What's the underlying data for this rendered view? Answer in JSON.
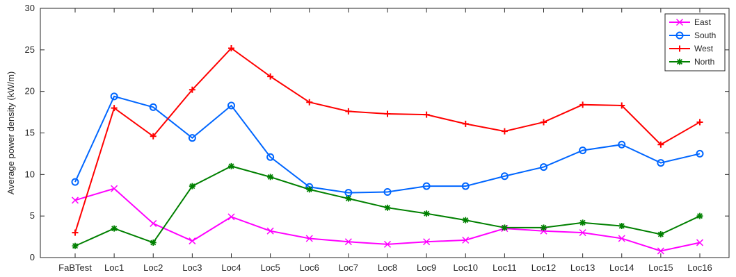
{
  "chart_data": {
    "type": "line",
    "title": "",
    "xlabel": "",
    "ylabel": "Average power density (kW/m)",
    "ylim": [
      0,
      30
    ],
    "yticks": [
      0,
      5,
      10,
      15,
      20,
      25,
      30
    ],
    "grid": false,
    "legend_position": "top-right",
    "categories": [
      "FaBTest",
      "Loc1",
      "Loc2",
      "Loc3",
      "Loc4",
      "Loc5",
      "Loc6",
      "Loc7",
      "Loc8",
      "Loc9",
      "Loc10",
      "Loc11",
      "Loc12",
      "Loc13",
      "Loc14",
      "Loc15",
      "Loc16"
    ],
    "series": [
      {
        "name": "East",
        "color": "#ff00ff",
        "marker": "x",
        "values": [
          6.9,
          8.3,
          4.1,
          2.0,
          4.9,
          3.2,
          2.3,
          1.9,
          1.6,
          1.9,
          2.1,
          3.5,
          3.2,
          3.0,
          2.3,
          0.8,
          1.8
        ]
      },
      {
        "name": "South",
        "color": "#0066ff",
        "marker": "circle",
        "values": [
          9.1,
          19.4,
          18.1,
          14.4,
          18.3,
          12.1,
          8.5,
          7.8,
          7.9,
          8.6,
          8.6,
          9.8,
          10.9,
          12.9,
          13.6,
          11.4,
          12.5
        ]
      },
      {
        "name": "West",
        "color": "#ff0000",
        "marker": "plus",
        "values": [
          3.0,
          18.0,
          14.6,
          20.2,
          25.2,
          21.8,
          18.7,
          17.6,
          17.3,
          17.2,
          16.1,
          15.2,
          16.3,
          18.4,
          18.3,
          13.6,
          16.3
        ]
      },
      {
        "name": "North",
        "color": "#008000",
        "marker": "asterisk",
        "values": [
          1.4,
          3.5,
          1.8,
          8.6,
          11.0,
          9.7,
          8.2,
          7.1,
          6.0,
          5.3,
          4.5,
          3.6,
          3.6,
          4.2,
          3.8,
          2.8,
          5.0
        ]
      }
    ]
  }
}
